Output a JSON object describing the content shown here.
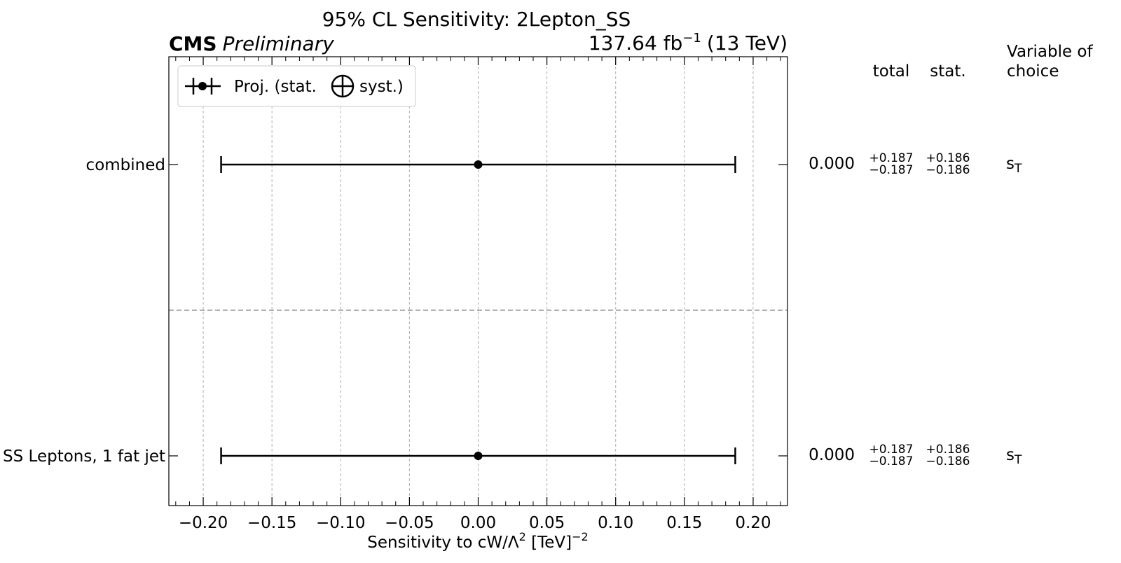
{
  "chart_data": {
    "type": "errorbar",
    "title": "95% CL Sensitivity: 2Lepton_SS",
    "experiment": "CMS",
    "status": "Preliminary",
    "luminosity": "137.64 fb",
    "lumi_exp": "−1",
    "energy": "(13 TeV)",
    "xlabel_main": "Sensitivity to cW/Λ",
    "xlabel_sup1": "2",
    "xlabel_mid": " [TeV]",
    "xlabel_sup2": "−2",
    "xlim": [
      -0.225,
      0.225
    ],
    "xticks": [
      -0.2,
      -0.15,
      -0.1,
      -0.05,
      0.0,
      0.05,
      0.1,
      0.15,
      0.2
    ],
    "xtick_labels": [
      "−0.20",
      "−0.15",
      "−0.10",
      "−0.05",
      "0.00",
      "0.05",
      "0.10",
      "0.15",
      "0.20"
    ],
    "grid": "vertical dashed",
    "legend": {
      "placement": "top-left",
      "label_left": "Proj. (stat.",
      "label_right": "syst.)"
    },
    "columns": {
      "total": "total",
      "stat": "stat.",
      "variable_line1": "Variable of",
      "variable_line2": "choice"
    },
    "categories": [
      {
        "label": "combined",
        "value": 0.0,
        "central": "0.000",
        "total_up": "+0.187",
        "total_down": "−0.187",
        "stat_up": "+0.186",
        "stat_down": "−0.186",
        "err_low": -0.187,
        "err_high": 0.187,
        "variable": "s",
        "variable_sub": "T"
      },
      {
        "label": "SS Leptons, 1 fat jet",
        "value": 0.0,
        "central": "0.000",
        "total_up": "+0.187",
        "total_down": "−0.187",
        "stat_up": "+0.186",
        "stat_down": "−0.186",
        "err_low": -0.187,
        "err_high": 0.187,
        "variable": "s",
        "variable_sub": "T"
      }
    ]
  }
}
